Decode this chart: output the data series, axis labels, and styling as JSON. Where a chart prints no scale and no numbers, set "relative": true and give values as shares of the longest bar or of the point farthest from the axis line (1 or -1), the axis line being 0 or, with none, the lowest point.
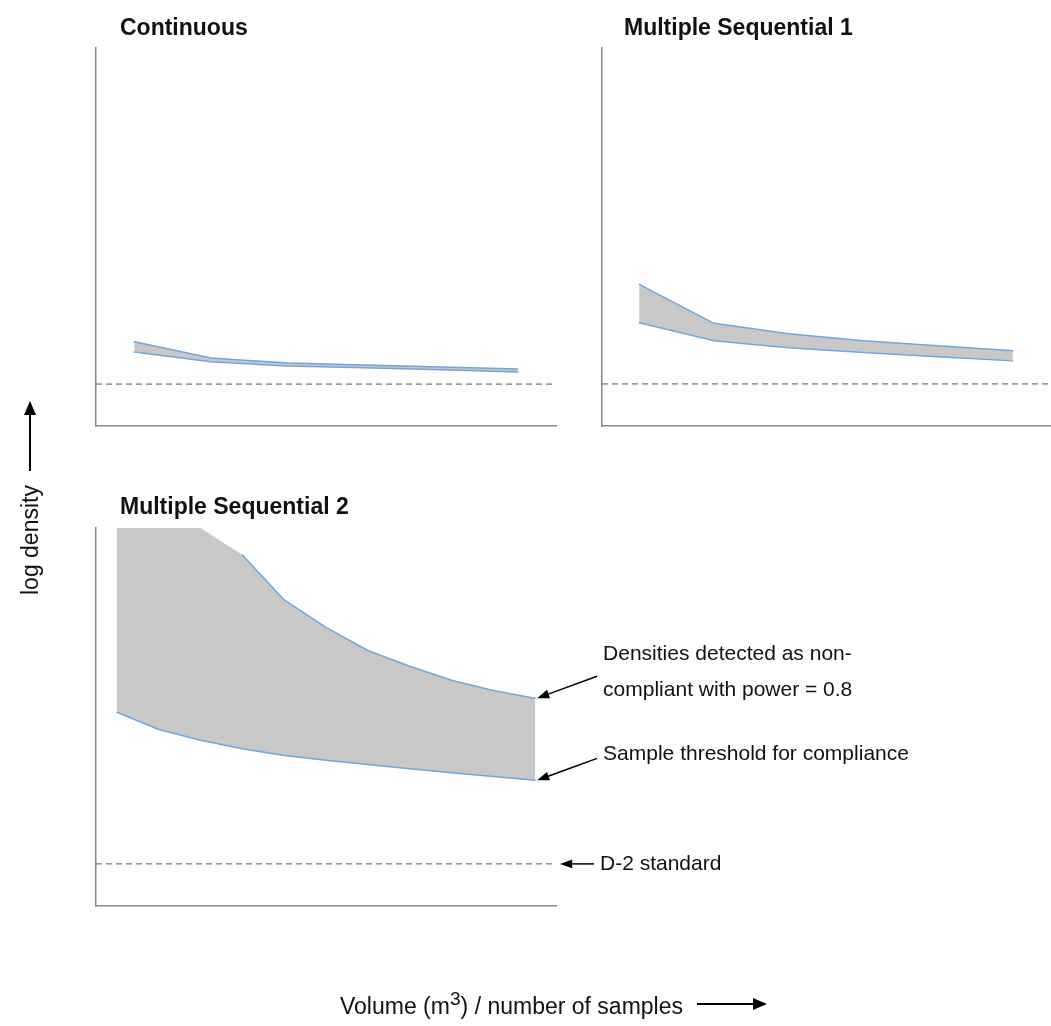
{
  "chart_data": [
    {
      "type": "line",
      "title": "Continuous",
      "ylabel": "log density",
      "categories": [
        null,
        null,
        null,
        null,
        null,
        null
      ],
      "relative": true,
      "grid": false,
      "legend": false,
      "tick_labels": false,
      "marker": "none",
      "line_style": "solid",
      "series": [
        {
          "color": "#6fa8dc",
          "values": [
            0.879,
            0.762,
            0.713,
            0.691,
            0.668,
            0.641
          ],
          "lower": [
            0.879,
            0.762,
            0.713,
            0.691,
            0.668,
            0.641
          ],
          "upper": [
            1,
            0.807,
            0.749,
            0.726,
            0.7,
            0.677
          ]
        },
        {
          "color": "#6fa8dc",
          "values": [
            1,
            0.807,
            0.749,
            0.726,
            0.7,
            0.677
          ]
        }
      ],
      "ref_lines": [
        {
          "axis": "y",
          "value": 0.498,
          "color": "#555555",
          "line_style": "dashed"
        }
      ]
    },
    {
      "type": "line",
      "title": "Multiple Sequential 1",
      "categories": [
        null,
        null,
        null,
        null,
        null,
        null
      ],
      "relative": true,
      "grid": false,
      "legend": false,
      "tick_labels": false,
      "marker": "none",
      "line_style": "solid",
      "series": [
        {
          "color": "#6fa8dc",
          "values": [
            0.73,
            0.602,
            0.553,
            0.519,
            0.489,
            0.46
          ],
          "lower": [
            0.73,
            0.602,
            0.553,
            0.519,
            0.489,
            0.46
          ],
          "upper": [
            1,
            0.725,
            0.652,
            0.602,
            0.567,
            0.532
          ]
        },
        {
          "color": "#6fa8dc",
          "values": [
            1,
            0.725,
            0.652,
            0.602,
            0.567,
            0.532
          ]
        }
      ],
      "ref_lines": [
        {
          "axis": "y",
          "value": 0.297,
          "color": "#555555",
          "line_style": "dashed"
        }
      ]
    },
    {
      "type": "line",
      "title": "Multiple Sequential 2",
      "xlabel": "Volume (m$^{3}$) / number of samples",
      "categories": [
        null,
        null,
        null,
        null,
        null,
        null,
        null,
        null,
        null,
        null,
        null
      ],
      "relative": true,
      "grid": false,
      "legend": false,
      "tick_labels": false,
      "marker": "none",
      "line_style": "solid",
      "series": [
        {
          "name": "Sample threshold for compliance",
          "color": "#6fa8dc",
          "values": [
            0.552,
            0.503,
            0.472,
            0.448,
            0.429,
            0.415,
            0.403,
            0.391,
            0.38,
            0.369,
            0.358
          ],
          "lower": [
            0.552,
            0.503,
            0.472,
            0.448,
            0.429,
            0.415,
            0.403,
            0.391,
            0.38,
            0.369,
            0.358
          ],
          "upper": [
            1.077,
            1.077,
            1.077,
            1,
            0.872,
            0.794,
            0.728,
            0.683,
            0.643,
            0.614,
            0.592
          ]
        },
        {
          "name": "Densities detected as non-compliant with power = 0.8",
          "color": "#6fa8dc",
          "values": [
            null,
            null,
            null,
            1,
            0.872,
            0.794,
            0.728,
            0.683,
            0.643,
            0.614,
            0.592
          ]
        }
      ],
      "ref_lines": [
        {
          "axis": "y",
          "value": 0.12,
          "label": "D-2 standard",
          "color": "#555555",
          "line_style": "dashed"
        }
      ]
    }
  ]
}
